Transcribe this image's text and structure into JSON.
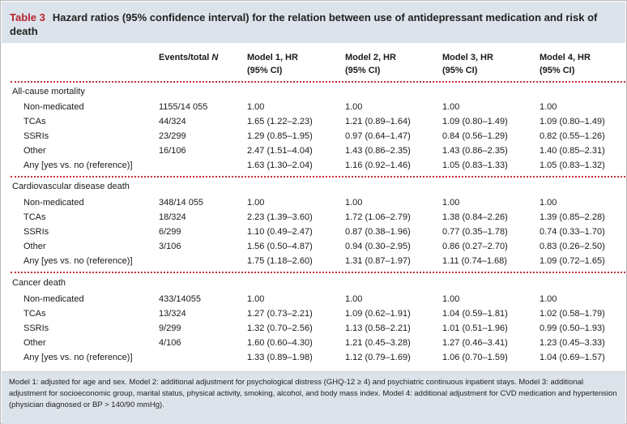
{
  "title": {
    "number": "Table 3",
    "text": "Hazard ratios (95% confidence interval) for the relation between use of antidepressant medication and risk of death"
  },
  "headers": {
    "events_prefix": "Events/total",
    "events_italic": "N",
    "m1_line1": "Model 1, HR",
    "m1_line2": "(95% CI)",
    "m2_line1": "Model 2, HR",
    "m2_line2": "(95% CI)",
    "m3_line1": "Model 3, HR",
    "m3_line2": "(95% CI)",
    "m4_line1": "Model 4, HR",
    "m4_line2": "(95% CI)"
  },
  "sections": [
    {
      "name": "All-cause mortality",
      "rows": [
        {
          "label": "Non-medicated",
          "events": "1155/14 055",
          "m1": "1.00",
          "m2": "1.00",
          "m3": "1.00",
          "m4": "1.00"
        },
        {
          "label": "TCAs",
          "events": "44/324",
          "m1": "1.65 (1.22–2.23)",
          "m2": "1.21 (0.89–1.64)",
          "m3": "1.09 (0.80–1.49)",
          "m4": "1.09 (0.80–1.49)"
        },
        {
          "label": "SSRIs",
          "events": "23/299",
          "m1": "1.29 (0.85–1.95)",
          "m2": "0.97 (0.64–1.47)",
          "m3": "0.84 (0.56–1.29)",
          "m4": "0.82 (0.55–1.26)"
        },
        {
          "label": "Other",
          "events": "16/106",
          "m1": "2.47 (1.51–4.04)",
          "m2": "1.43 (0.86–2.35)",
          "m3": "1.43 (0.86–2.35)",
          "m4": "1.40 (0.85–2.31)"
        },
        {
          "label": "Any [yes vs. no (reference)]",
          "events": "",
          "m1": "1.63 (1.30–2.04)",
          "m2": "1.16 (0.92–1.46)",
          "m3": "1.05 (0.83–1.33)",
          "m4": "1.05 (0.83–1.32)"
        }
      ]
    },
    {
      "name": "Cardiovascular disease death",
      "rows": [
        {
          "label": "Non-medicated",
          "events": "348/14 055",
          "m1": "1.00",
          "m2": "1.00",
          "m3": "1.00",
          "m4": "1.00"
        },
        {
          "label": "TCAs",
          "events": "18/324",
          "m1": "2.23 (1.39–3.60)",
          "m2": "1.72 (1.06–2.79)",
          "m3": "1.38 (0.84–2.26)",
          "m4": "1.39 (0.85–2.28)"
        },
        {
          "label": "SSRIs",
          "events": "6/299",
          "m1": "1.10 (0.49–2.47)",
          "m2": "0.87 (0.38–1.96)",
          "m3": "0.77 (0.35–1.78)",
          "m4": "0.74 (0.33–1.70)"
        },
        {
          "label": "Other",
          "events": "3/106",
          "m1": "1.56 (0.50–4.87)",
          "m2": "0.94 (0.30–2.95)",
          "m3": "0.86 (0.27–2.70)",
          "m4": "0.83 (0.26–2.50)"
        },
        {
          "label": "Any [yes vs. no (reference)]",
          "events": "",
          "m1": "1.75 (1.18–2.60)",
          "m2": "1.31 (0.87–1.97)",
          "m3": "1.11 (0.74–1.68)",
          "m4": "1.09 (0.72–1.65)"
        }
      ]
    },
    {
      "name": "Cancer death",
      "rows": [
        {
          "label": "Non-medicated",
          "events": "433/14055",
          "m1": "1.00",
          "m2": "1.00",
          "m3": "1.00",
          "m4": "1.00"
        },
        {
          "label": "TCAs",
          "events": "13/324",
          "m1": "1.27 (0.73–2.21)",
          "m2": "1.09 (0.62–1.91)",
          "m3": "1.04 (0.59–1.81)",
          "m4": "1.02 (0.58–1.79)"
        },
        {
          "label": "SSRIs",
          "events": "9/299",
          "m1": "1.32 (0.70–2.56)",
          "m2": "1.13 (0.58–2.21)",
          "m3": "1.01 (0.51–1.96)",
          "m4": "0.99 (0.50–1.93)"
        },
        {
          "label": "Other",
          "events": "4/106",
          "m1": "1.60 (0.60–4.30)",
          "m2": "1.21 (0.45–3.28)",
          "m3": "1.27 (0.46–3.41)",
          "m4": "1.23 (0.45–3.33)"
        },
        {
          "label": "Any [yes vs. no (reference)]",
          "events": "",
          "m1": "1.33 (0.89–1.98)",
          "m2": "1.12 (0.79–1.69)",
          "m3": "1.06 (0.70–1.59)",
          "m4": "1.04 (0.69–1.57)"
        }
      ]
    }
  ],
  "footnote": "Model 1: adjusted for age and sex. Model 2: additional adjustment for psychological distress (GHQ-12 ≥ 4) and psychiatric continuous inpatient stays. Model 3: additional adjustment for socioeconomic group, marital status, physical activity, smoking, alcohol, and body mass index. Model 4: additional adjustment for CVD medication and hypertension (physician diagnosed or BP > 140/90 mmHg).",
  "colors": {
    "title_band": "#dde3ea",
    "accent_red": "#b5252e",
    "dotted_rule": "#c3303a"
  }
}
